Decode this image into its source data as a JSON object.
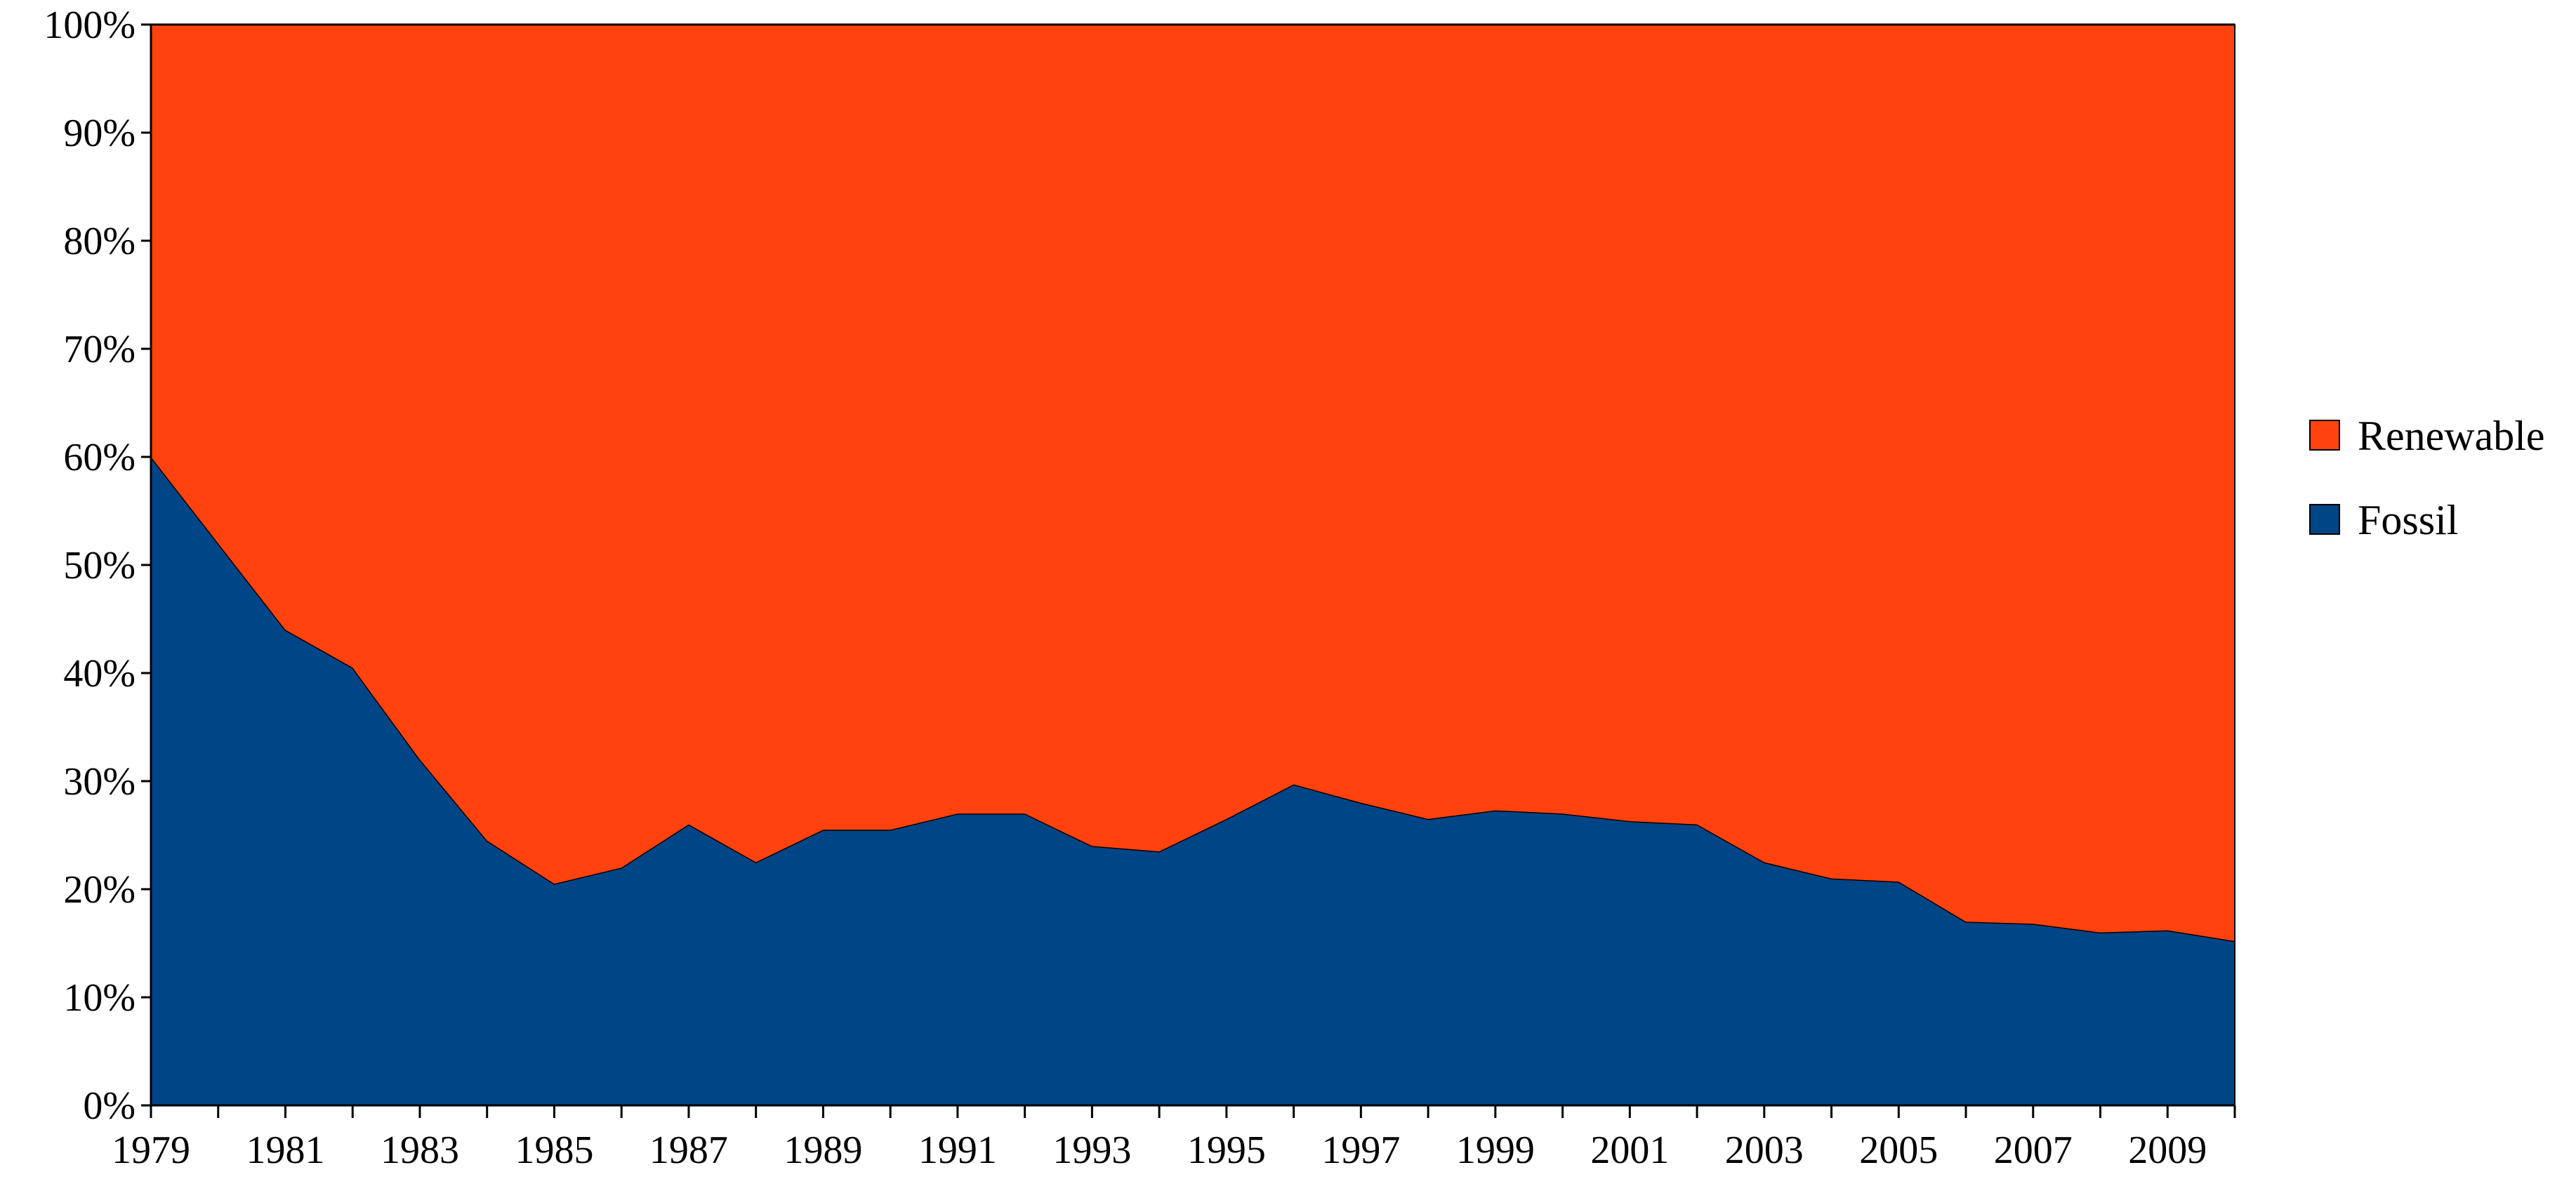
{
  "chart_data": {
    "type": "area",
    "stacked": true,
    "percent": true,
    "title": "",
    "xlabel": "",
    "ylabel": "",
    "x": [
      1979,
      1980,
      1981,
      1982,
      1983,
      1984,
      1985,
      1986,
      1987,
      1988,
      1989,
      1990,
      1991,
      1992,
      1993,
      1994,
      1995,
      1996,
      1997,
      1998,
      1999,
      2000,
      2001,
      2002,
      2003,
      2004,
      2005,
      2006,
      2007,
      2008,
      2009,
      2010
    ],
    "x_tick_labels": [
      "1979",
      "1981",
      "1983",
      "1985",
      "1987",
      "1989",
      "1991",
      "1993",
      "1995",
      "1997",
      "1999",
      "2001",
      "2003",
      "2005",
      "2007",
      "2009"
    ],
    "y_tick_labels": [
      "0%",
      "10%",
      "20%",
      "30%",
      "40%",
      "50%",
      "60%",
      "70%",
      "80%",
      "90%",
      "100%"
    ],
    "ylim": [
      0,
      100
    ],
    "series": [
      {
        "name": "Fossil",
        "color": "#004586",
        "values": [
          60,
          52,
          44,
          40.5,
          32,
          24.5,
          20.5,
          22,
          26,
          22.5,
          25.5,
          25.5,
          27,
          27,
          24,
          23.5,
          26.5,
          29.7,
          28,
          26.5,
          27.3,
          27,
          26.3,
          26,
          22.5,
          21,
          20.7,
          17,
          16.8,
          16,
          16.2,
          15.2
        ]
      },
      {
        "name": "Renewable",
        "color": "#ff420e",
        "values": [
          40,
          48,
          56,
          59.5,
          68,
          75.5,
          79.5,
          78,
          74,
          77.5,
          74.5,
          74.5,
          73,
          73,
          76,
          76.5,
          73.5,
          70.3,
          72,
          73.5,
          72.7,
          73,
          73.7,
          74,
          77.5,
          79,
          79.3,
          83,
          83.2,
          84,
          83.8,
          84.8
        ]
      }
    ],
    "legend": {
      "placement": "right",
      "entries": [
        "Renewable",
        "Fossil"
      ]
    },
    "grid": false
  }
}
